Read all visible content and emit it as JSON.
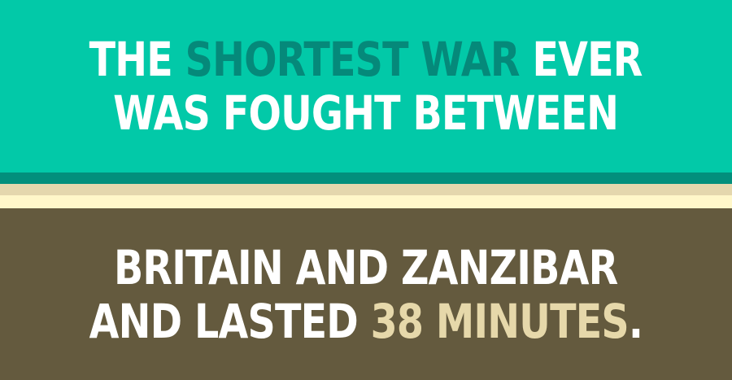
{
  "top": {
    "line1": {
      "part1": "THE ",
      "accent": "SHORTEST WAR",
      "part2": " EVER"
    },
    "line2": "WAS FOUGHT BETWEEN"
  },
  "bottom": {
    "line1": "BRITAIN AND ZANZIBAR",
    "line2": {
      "part1": "AND LASTED ",
      "accent": "38 MINUTES",
      "part2": "."
    }
  },
  "colors": {
    "top_background": "#02c9a8",
    "top_accent_text": "#05897a",
    "stripe_dark_teal": "#028f7c",
    "stripe_tan": "#e4d7ad",
    "stripe_cream": "#fff7c9",
    "bottom_background": "#645a3e",
    "bottom_accent_text": "#e6d8aa",
    "main_text": "#ffffff"
  }
}
